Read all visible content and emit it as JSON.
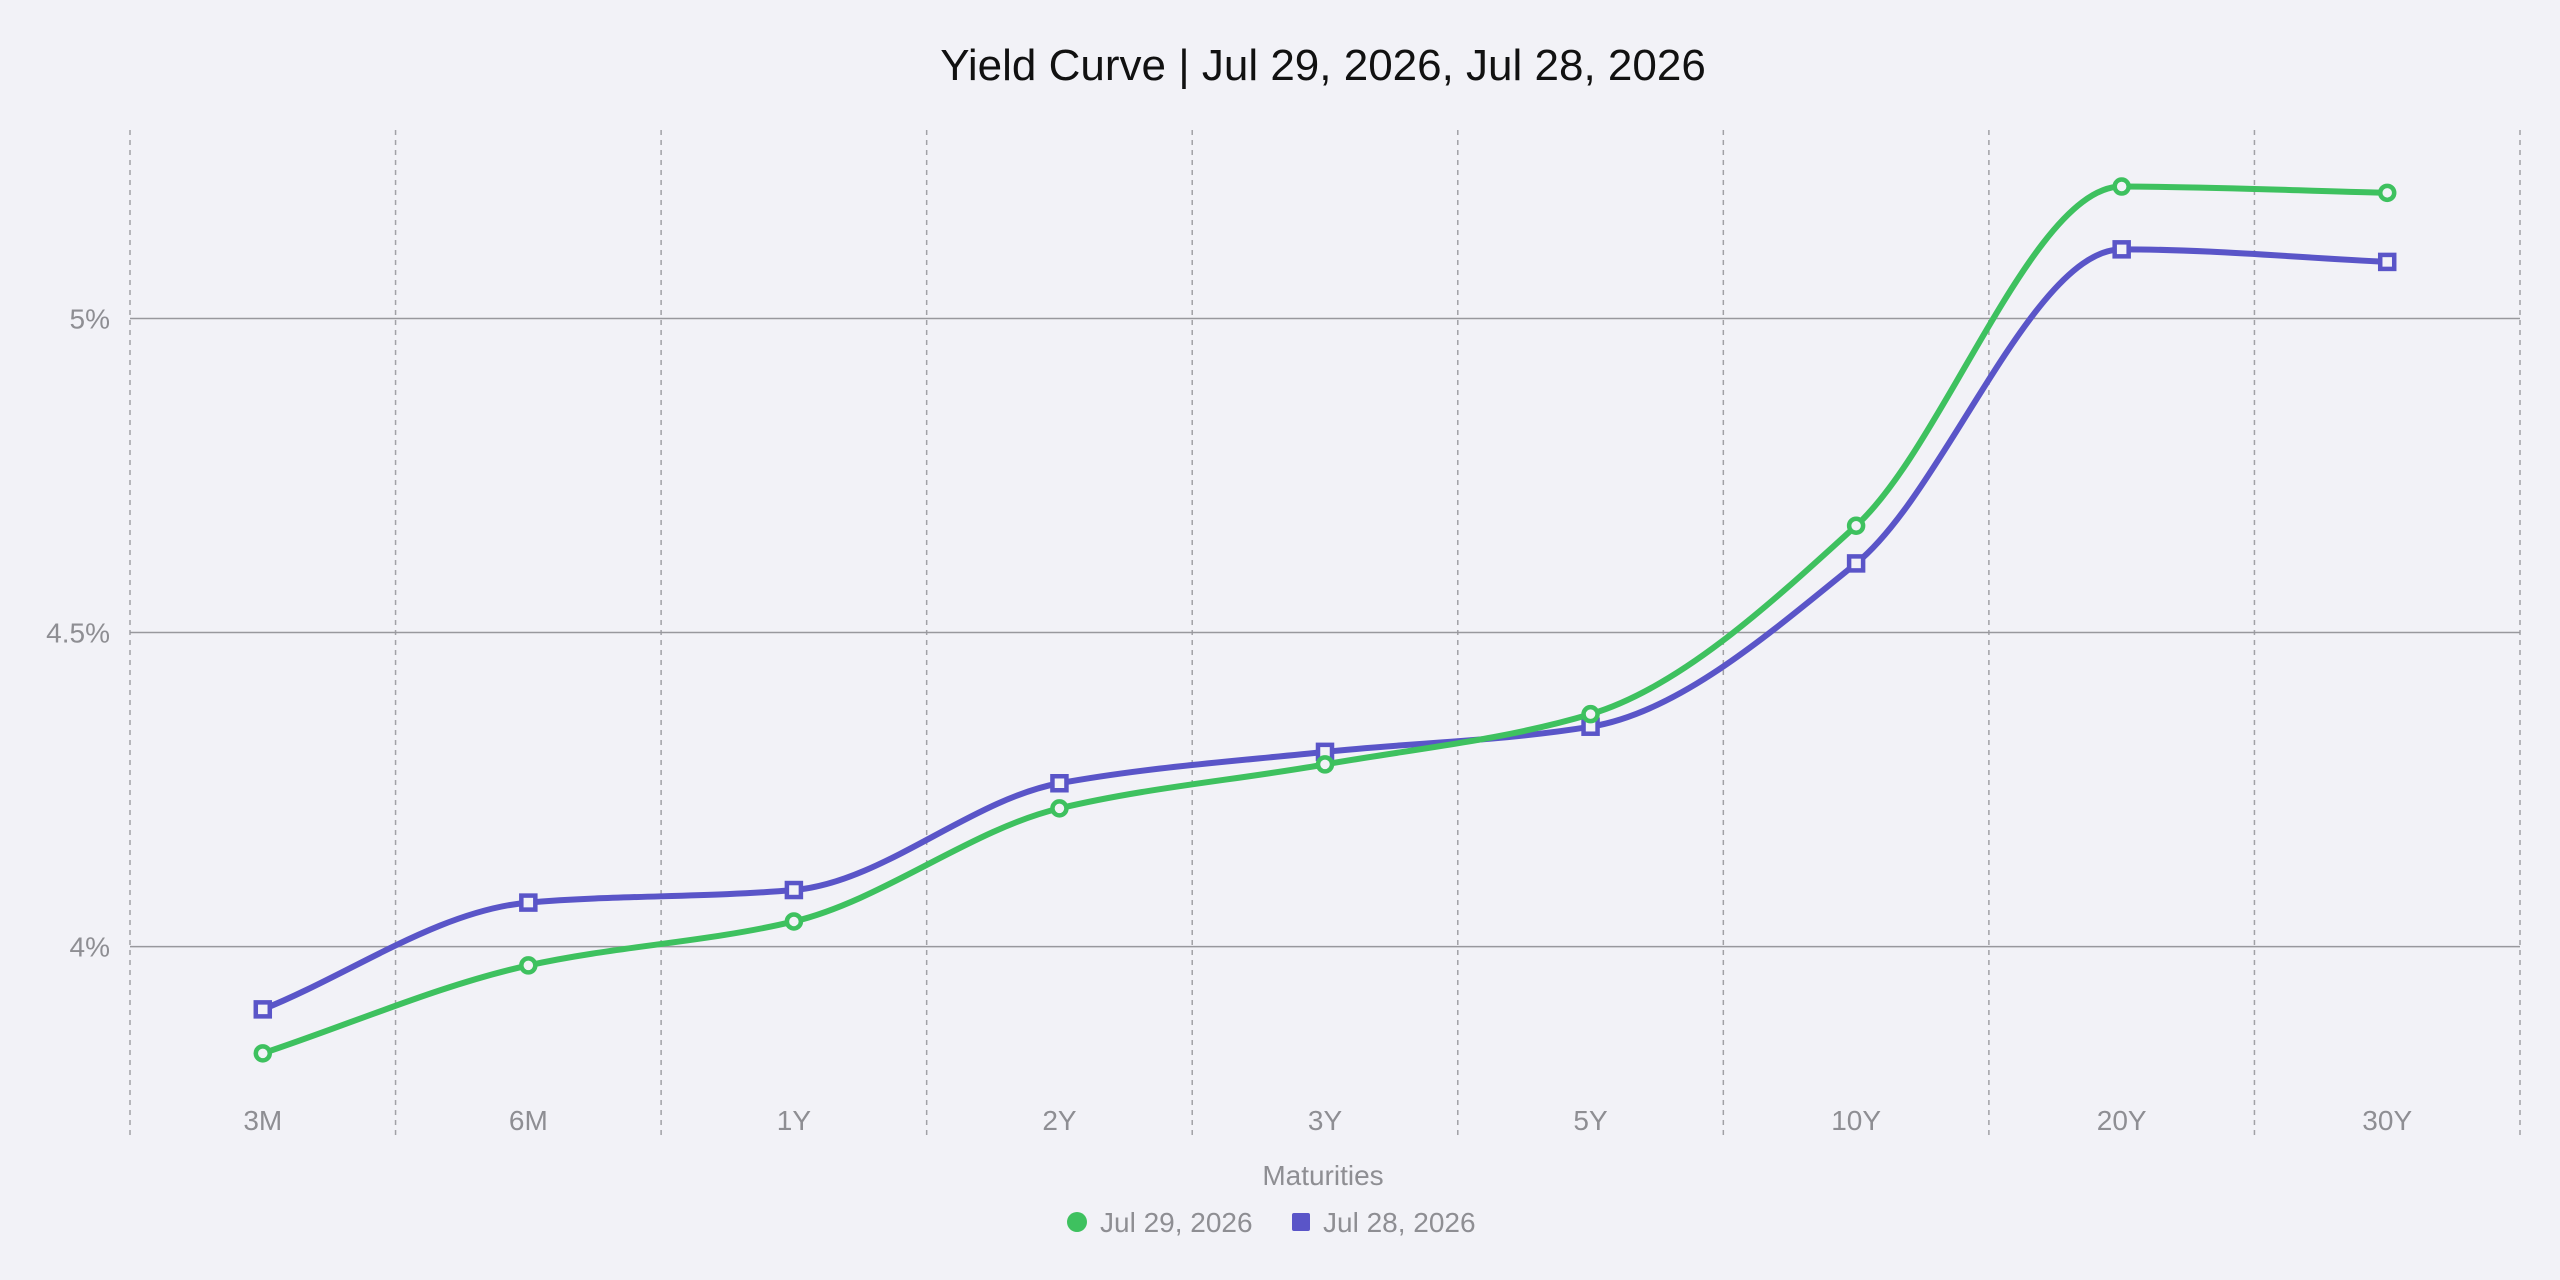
{
  "chart_data": {
    "type": "line",
    "title": "Yield Curve | Jul 29, 2026, Jul 28, 2026",
    "xlabel": "Maturities",
    "ylabel": "",
    "categories": [
      "3M",
      "6M",
      "1Y",
      "2Y",
      "3Y",
      "5Y",
      "10Y",
      "20Y",
      "30Y"
    ],
    "y_ticks": [
      {
        "value": 4.0,
        "label": "4%"
      },
      {
        "value": 4.5,
        "label": "4.5%"
      },
      {
        "value": 5.0,
        "label": "5%"
      }
    ],
    "ylim": [
      3.7,
      5.3
    ],
    "grid": {
      "x": "dashed",
      "y": "solid"
    },
    "legend_position": "bottom-center",
    "series": [
      {
        "name": "Jul 29, 2026",
        "color": "#3ec15f",
        "marker": "circle",
        "values": [
          3.83,
          3.97,
          4.04,
          4.22,
          4.29,
          4.37,
          4.67,
          5.21,
          5.2
        ]
      },
      {
        "name": "Jul 28, 2026",
        "color": "#5a55c8",
        "marker": "square",
        "values": [
          3.9,
          4.07,
          4.09,
          4.26,
          4.31,
          4.35,
          4.61,
          5.11,
          5.09
        ]
      }
    ]
  }
}
